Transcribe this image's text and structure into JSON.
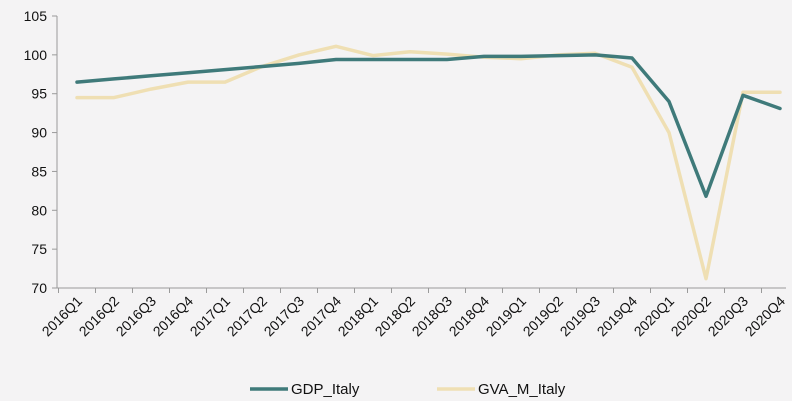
{
  "chart_data": {
    "type": "line",
    "title": "",
    "xlabel": "",
    "ylabel": "",
    "ylim": [
      70,
      105
    ],
    "yticks": [
      70,
      75,
      80,
      85,
      90,
      95,
      100,
      105
    ],
    "grid": false,
    "legend_position": "bottom",
    "categories": [
      "2016Q1",
      "2016Q2",
      "2016Q3",
      "2016Q4",
      "2017Q1",
      "2017Q2",
      "2017Q3",
      "2017Q4",
      "2018Q1",
      "2018Q2",
      "2018Q3",
      "2018Q4",
      "2019Q1",
      "2019Q2",
      "2019Q3",
      "2019Q4",
      "2020Q1",
      "2020Q2",
      "2020Q3",
      "2020Q4"
    ],
    "series": [
      {
        "name": "GDP_Italy",
        "color": "#3f7a7a",
        "values": [
          96.5,
          96.9,
          97.3,
          97.7,
          98.1,
          98.5,
          98.9,
          99.4,
          99.4,
          99.4,
          99.4,
          99.8,
          99.8,
          99.9,
          100.0,
          99.6,
          94.0,
          81.8,
          94.8,
          93.1
        ]
      },
      {
        "name": "GVA_M_Italy",
        "color": "#efdfb3",
        "values": [
          94.5,
          94.5,
          95.6,
          96.5,
          96.5,
          98.5,
          100.0,
          101.1,
          99.9,
          100.4,
          100.1,
          99.7,
          99.5,
          100.0,
          100.2,
          98.4,
          90.0,
          71.2,
          95.2,
          95.2
        ]
      }
    ]
  }
}
